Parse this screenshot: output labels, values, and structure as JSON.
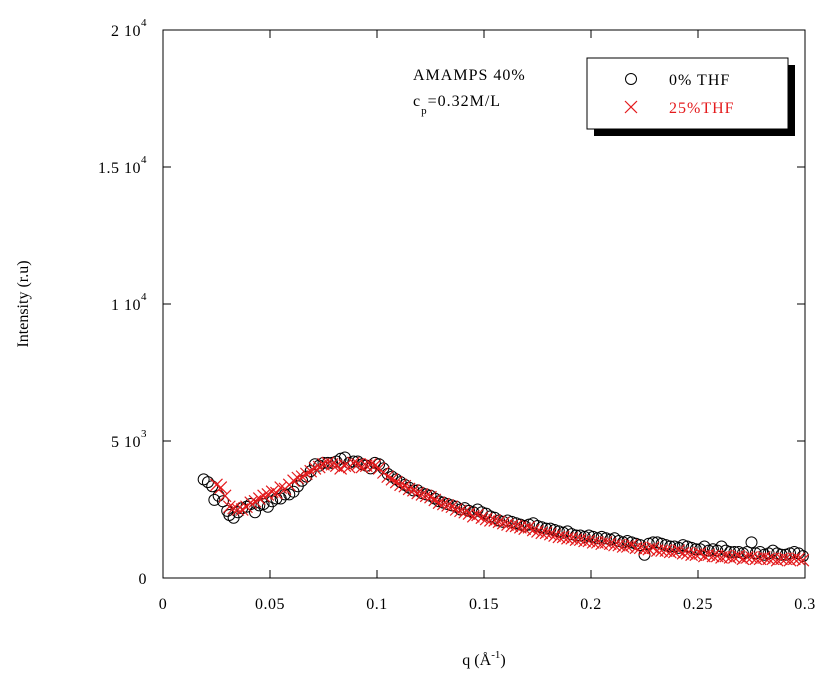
{
  "chart_data": {
    "type": "scatter",
    "xlabel": "q",
    "xunit_base": "Å",
    "xunit_exp": "-1",
    "ylabel": "Intensity (r.u)",
    "xlim": [
      0,
      0.3
    ],
    "ylim": [
      0,
      20000
    ],
    "x_ticks": [
      {
        "value": 0,
        "label": "0"
      },
      {
        "value": 0.05,
        "label": "0.05"
      },
      {
        "value": 0.1,
        "label": "0.1"
      },
      {
        "value": 0.15,
        "label": "0.15"
      },
      {
        "value": 0.2,
        "label": "0.2"
      },
      {
        "value": 0.25,
        "label": "0.25"
      },
      {
        "value": 0.3,
        "label": "0.3"
      }
    ],
    "y_ticks": [
      {
        "value": 0,
        "mantissa": "0",
        "exp": ""
      },
      {
        "value": 5000,
        "mantissa": "5 10",
        "exp": "3"
      },
      {
        "value": 10000,
        "mantissa": "1 10",
        "exp": "4"
      },
      {
        "value": 15000,
        "mantissa": "1.5 10",
        "exp": "4"
      },
      {
        "value": 20000,
        "mantissa": "2 10",
        "exp": "4"
      }
    ],
    "annotation_line1": "AMAMPS 40%",
    "annotation_c": "c",
    "annotation_sub": "p",
    "annotation_rest": "=0.32M/L",
    "legend_position": "top-right",
    "grid": false,
    "series": [
      {
        "name": "0% THF",
        "marker": "circle",
        "color": "#000000",
        "x": [
          0.019,
          0.021,
          0.023,
          0.024,
          0.026,
          0.028,
          0.03,
          0.031,
          0.033,
          0.035,
          0.037,
          0.039,
          0.041,
          0.043,
          0.045,
          0.047,
          0.049,
          0.051,
          0.053,
          0.055,
          0.057,
          0.059,
          0.061,
          0.063,
          0.065,
          0.067,
          0.069,
          0.071,
          0.073,
          0.075,
          0.077,
          0.079,
          0.081,
          0.083,
          0.085,
          0.087,
          0.089,
          0.091,
          0.093,
          0.095,
          0.097,
          0.099,
          0.101,
          0.103,
          0.105,
          0.107,
          0.109,
          0.111,
          0.113,
          0.115,
          0.117,
          0.119,
          0.121,
          0.123,
          0.125,
          0.127,
          0.129,
          0.131,
          0.133,
          0.135,
          0.137,
          0.139,
          0.141,
          0.143,
          0.145,
          0.147,
          0.149,
          0.151,
          0.153,
          0.155,
          0.157,
          0.159,
          0.161,
          0.163,
          0.165,
          0.167,
          0.169,
          0.171,
          0.173,
          0.175,
          0.177,
          0.179,
          0.181,
          0.183,
          0.185,
          0.187,
          0.189,
          0.191,
          0.193,
          0.195,
          0.197,
          0.199,
          0.201,
          0.203,
          0.205,
          0.207,
          0.209,
          0.211,
          0.213,
          0.215,
          0.217,
          0.219,
          0.221,
          0.223,
          0.225,
          0.227,
          0.229,
          0.231,
          0.233,
          0.235,
          0.237,
          0.239,
          0.241,
          0.243,
          0.245,
          0.247,
          0.249,
          0.251,
          0.253,
          0.255,
          0.257,
          0.259,
          0.261,
          0.263,
          0.265,
          0.267,
          0.269,
          0.271,
          0.273,
          0.275,
          0.277,
          0.279,
          0.281,
          0.283,
          0.285,
          0.287,
          0.289,
          0.291,
          0.293,
          0.295,
          0.297,
          0.299
        ],
        "y": [
          3600,
          3500,
          3350,
          2850,
          3000,
          2800,
          2450,
          2300,
          2200,
          2400,
          2550,
          2600,
          2700,
          2400,
          2650,
          2700,
          2600,
          2800,
          2900,
          2900,
          3050,
          3050,
          3150,
          3350,
          3550,
          3700,
          3900,
          4150,
          4100,
          4200,
          4200,
          4200,
          4250,
          4350,
          4400,
          4200,
          4250,
          4250,
          4150,
          4100,
          4000,
          4200,
          4150,
          4000,
          3800,
          3700,
          3600,
          3500,
          3400,
          3300,
          3200,
          3200,
          3100,
          3050,
          3000,
          2900,
          2800,
          2750,
          2700,
          2650,
          2600,
          2500,
          2550,
          2450,
          2400,
          2500,
          2400,
          2350,
          2250,
          2200,
          2100,
          2050,
          2100,
          2050,
          2000,
          1950,
          1900,
          1950,
          2000,
          1900,
          1850,
          1800,
          1800,
          1750,
          1700,
          1650,
          1700,
          1600,
          1550,
          1550,
          1500,
          1550,
          1500,
          1450,
          1500,
          1450,
          1400,
          1450,
          1350,
          1300,
          1350,
          1300,
          1250,
          1200,
          850,
          1250,
          1300,
          1300,
          1250,
          1200,
          1150,
          1150,
          1100,
          1200,
          1150,
          1100,
          1050,
          1050,
          1150,
          1000,
          1050,
          1000,
          1150,
          1000,
          950,
          950,
          950,
          900,
          950,
          1300,
          900,
          950,
          850,
          900,
          1000,
          900,
          850,
          850,
          900,
          950,
          900,
          800
        ]
      },
      {
        "name": "25%THF",
        "marker": "cross",
        "color": "#e41a1c",
        "x": [
          0.025,
          0.027,
          0.029,
          0.031,
          0.033,
          0.035,
          0.037,
          0.039,
          0.041,
          0.043,
          0.045,
          0.047,
          0.049,
          0.051,
          0.053,
          0.055,
          0.057,
          0.059,
          0.061,
          0.063,
          0.065,
          0.067,
          0.069,
          0.071,
          0.073,
          0.075,
          0.077,
          0.079,
          0.081,
          0.083,
          0.085,
          0.087,
          0.089,
          0.091,
          0.093,
          0.095,
          0.097,
          0.099,
          0.101,
          0.103,
          0.105,
          0.107,
          0.109,
          0.111,
          0.113,
          0.115,
          0.117,
          0.119,
          0.121,
          0.123,
          0.125,
          0.127,
          0.129,
          0.131,
          0.133,
          0.135,
          0.137,
          0.139,
          0.141,
          0.143,
          0.145,
          0.147,
          0.149,
          0.151,
          0.153,
          0.155,
          0.157,
          0.159,
          0.161,
          0.163,
          0.165,
          0.167,
          0.169,
          0.171,
          0.173,
          0.175,
          0.177,
          0.179,
          0.181,
          0.183,
          0.185,
          0.187,
          0.189,
          0.191,
          0.193,
          0.195,
          0.197,
          0.199,
          0.201,
          0.203,
          0.205,
          0.207,
          0.209,
          0.211,
          0.213,
          0.215,
          0.217,
          0.219,
          0.221,
          0.223,
          0.225,
          0.227,
          0.229,
          0.231,
          0.233,
          0.235,
          0.237,
          0.239,
          0.241,
          0.243,
          0.245,
          0.247,
          0.249,
          0.251,
          0.253,
          0.255,
          0.257,
          0.259,
          0.261,
          0.263,
          0.265,
          0.267,
          0.269,
          0.271,
          0.273,
          0.275,
          0.277,
          0.279,
          0.281,
          0.283,
          0.285,
          0.287,
          0.289,
          0.291,
          0.293,
          0.295,
          0.297,
          0.299
        ],
        "y": [
          3400,
          3300,
          3000,
          2600,
          2550,
          2500,
          2500,
          2600,
          2750,
          2800,
          2900,
          3000,
          3050,
          3150,
          3100,
          3300,
          3250,
          3400,
          3550,
          3650,
          3700,
          3800,
          3900,
          4000,
          4050,
          4150,
          4200,
          4150,
          4100,
          4000,
          4100,
          4050,
          4200,
          4150,
          4050,
          4100,
          4150,
          4100,
          4000,
          3850,
          3700,
          3600,
          3500,
          3400,
          3350,
          3250,
          3200,
          3100,
          3050,
          3000,
          2950,
          2850,
          2750,
          2700,
          2650,
          2600,
          2500,
          2450,
          2400,
          2350,
          2250,
          2300,
          2200,
          2150,
          2100,
          2100,
          2050,
          2000,
          1950,
          1900,
          1900,
          1850,
          1800,
          1850,
          1750,
          1700,
          1650,
          1650,
          1600,
          1550,
          1500,
          1500,
          1450,
          1450,
          1400,
          1400,
          1350,
          1350,
          1300,
          1300,
          1250,
          1300,
          1250,
          1200,
          1200,
          1150,
          1150,
          1200,
          1100,
          1100,
          1050,
          1050,
          1100,
          1000,
          1000,
          1000,
          950,
          950,
          1000,
          900,
          900,
          850,
          850,
          900,
          800,
          850,
          800,
          800,
          750,
          800,
          750,
          750,
          800,
          700,
          750,
          750,
          700,
          700,
          750,
          700,
          700,
          650,
          700,
          700,
          650,
          700,
          700,
          650
        ]
      }
    ]
  }
}
